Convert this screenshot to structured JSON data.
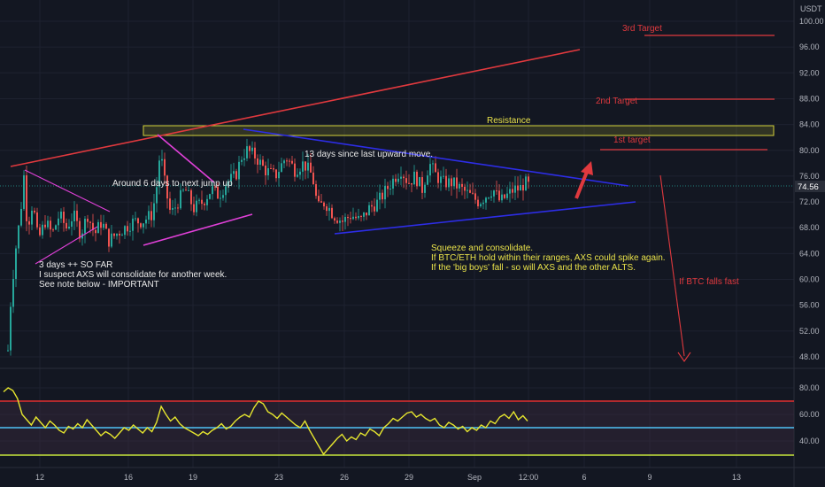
{
  "currency": "USDT",
  "colors": {
    "background": "#131722",
    "grid": "#1e2230",
    "up": "#26a69a",
    "down": "#ef5350",
    "rsi_line": "#e6e62e",
    "rsi_upper": "#e02f2f",
    "rsi_mid": "#4fc3f7",
    "rsi_lower": "#c8e63c",
    "trend_red": "#e0393e",
    "trend_magenta": "#e040d8",
    "trend_blue": "#2d2de6",
    "resistance": "#d4d23a",
    "price_badge": "#2a2e39"
  },
  "chart_data": {
    "type": "candlestick",
    "price_axis": {
      "ticks": [
        "100.00",
        "96.00",
        "92.00",
        "88.00",
        "84.00",
        "80.00",
        "76.00",
        "72.00",
        "68.00",
        "64.00",
        "60.00",
        "56.00",
        "52.00",
        "48.00"
      ],
      "ylim": [
        46,
        101
      ]
    },
    "rsi_axis": {
      "ticks": [
        "80.00",
        "60.00",
        "40.00"
      ],
      "ylim": [
        20,
        90
      ],
      "levels": [
        70,
        50,
        30
      ]
    },
    "x_ticks": [
      "12",
      "16",
      "19",
      "23",
      "26",
      "29",
      "Sep",
      "12:00",
      "6",
      "9",
      "13"
    ],
    "last_price": "74.56",
    "rsi_series": [
      77,
      80,
      78,
      72,
      60,
      56,
      52,
      58,
      54,
      50,
      55,
      52,
      48,
      46,
      51,
      49,
      53,
      50,
      56,
      52,
      48,
      44,
      47,
      45,
      42,
      46,
      50,
      48,
      52,
      49,
      46,
      50,
      47,
      54,
      66,
      60,
      55,
      58,
      53,
      50,
      48,
      46,
      44,
      47,
      45,
      48,
      50,
      53,
      49,
      51,
      55,
      58,
      60,
      58,
      65,
      70,
      68,
      62,
      60,
      57,
      61,
      58,
      55,
      52,
      50,
      55,
      48,
      42,
      36,
      30,
      34,
      38,
      42,
      45,
      40,
      43,
      41,
      46,
      44,
      49,
      47,
      44,
      50,
      53,
      57,
      55,
      58,
      61,
      62,
      58,
      60,
      57,
      55,
      57,
      52,
      50,
      54,
      52,
      49,
      51,
      47,
      50,
      48,
      52,
      50,
      55,
      53,
      58,
      60,
      57,
      62,
      56,
      59,
      55
    ],
    "annotations": {
      "third_target": "3rd Target",
      "second_target": "2nd Target",
      "first_target": "1st target",
      "resistance": "Resistance",
      "days_since": "13 days since last upward move.",
      "around_six": "Around 6 days to next jump up",
      "three_days": "3 days ++ SO FAR",
      "suspect": "I suspect AXS will consolidate for another week.",
      "see_note": "See note below - IMPORTANT",
      "squeeze": "Squeeze and consolidate.",
      "if_hold": "If BTC/ETH hold within their ranges, AXS could spike again.",
      "if_fall": "If the 'big boys' fall - so will AXS and the other ALTS.",
      "btc_falls": "If BTC falls fast"
    }
  }
}
